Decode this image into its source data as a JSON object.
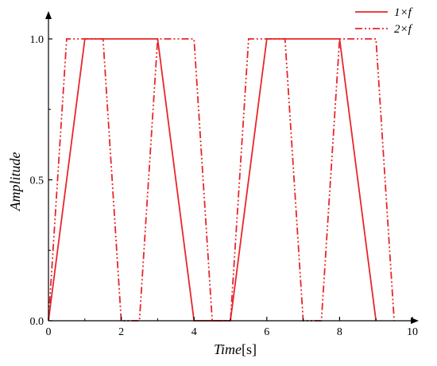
{
  "chart_data": {
    "type": "line",
    "xlabel_main": "Time",
    "xlabel_unit": "[s]",
    "ylabel": "Amplitude",
    "xlim": [
      0,
      10
    ],
    "ylim": [
      0,
      1.0
    ],
    "x_ticks": [
      {
        "value": 0,
        "label": "0"
      },
      {
        "value": 2,
        "label": "2"
      },
      {
        "value": 4,
        "label": "4"
      },
      {
        "value": 6,
        "label": "6"
      },
      {
        "value": 8,
        "label": "8"
      },
      {
        "value": 10,
        "label": "10"
      }
    ],
    "y_ticks": [
      {
        "value": 0,
        "label": "0.0"
      },
      {
        "value": 0.5,
        "label": "0.5"
      },
      {
        "value": 1.0,
        "label": "1.0"
      }
    ],
    "grid": false,
    "legend_position": "top-right",
    "colors": {
      "series": "#e8262b",
      "axis": "#000000"
    },
    "series": [
      {
        "name": "1×f",
        "style": "solid",
        "x": [
          0,
          1,
          3,
          4,
          5,
          6,
          8,
          9
        ],
        "y": [
          0,
          1,
          1,
          0,
          0,
          1,
          1,
          0
        ]
      },
      {
        "name": "2×f",
        "style": "dash-dot-dot",
        "x": [
          0,
          0.5,
          1.5,
          2,
          2.5,
          3,
          4,
          4.5,
          5,
          5.5,
          6.5,
          7,
          7.5,
          8,
          9,
          9.5
        ],
        "y": [
          0,
          1,
          1,
          0,
          0,
          1,
          1,
          0,
          0,
          1,
          1,
          0,
          0,
          1,
          1,
          0
        ]
      }
    ]
  }
}
